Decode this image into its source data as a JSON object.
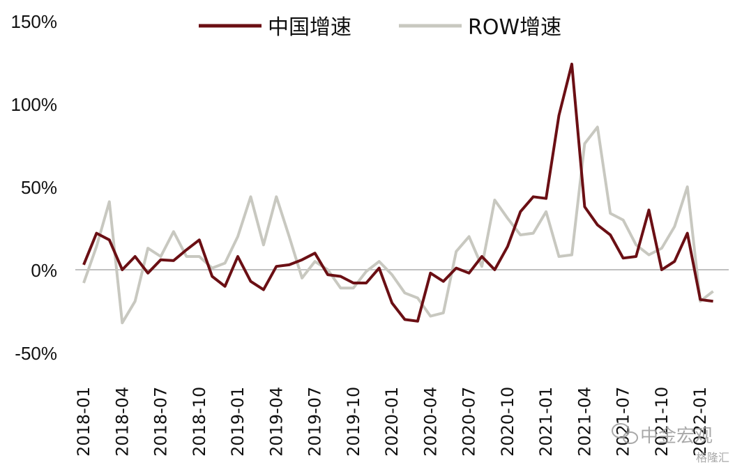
{
  "chart_data": {
    "type": "line",
    "title": "",
    "xlabel": "",
    "ylabel": "",
    "ylim": [
      -0.5,
      1.5
    ],
    "yticks": [
      -0.5,
      0,
      0.5,
      1.0,
      1.5
    ],
    "ytick_labels": [
      "-50%",
      "0%",
      "50%",
      "100%",
      "150%"
    ],
    "zero_line": true,
    "grid": false,
    "legend_position": "top",
    "x": [
      "2018-01",
      "2018-02",
      "2018-03",
      "2018-04",
      "2018-05",
      "2018-06",
      "2018-07",
      "2018-08",
      "2018-09",
      "2018-10",
      "2018-11",
      "2018-12",
      "2019-01",
      "2019-02",
      "2019-03",
      "2019-04",
      "2019-05",
      "2019-06",
      "2019-07",
      "2019-08",
      "2019-09",
      "2019-10",
      "2019-11",
      "2019-12",
      "2020-01",
      "2020-02",
      "2020-03",
      "2020-04",
      "2020-05",
      "2020-06",
      "2020-07",
      "2020-08",
      "2020-09",
      "2020-10",
      "2020-11",
      "2020-12",
      "2021-01",
      "2021-02",
      "2021-03",
      "2021-04",
      "2021-05",
      "2021-06",
      "2021-07",
      "2021-08",
      "2021-09",
      "2021-10",
      "2021-11",
      "2021-12",
      "2022-01",
      "2022-02"
    ],
    "xtick_labels": [
      "2018-01",
      "2018-04",
      "2018-07",
      "2018-10",
      "2019-01",
      "2019-04",
      "2019-07",
      "2019-10",
      "2020-01",
      "2020-04",
      "2020-07",
      "2020-10",
      "2021-01",
      "2021-04",
      "2021-07",
      "2021-10",
      "2022-01"
    ],
    "series": [
      {
        "name": "中国增速",
        "color": "#6b0f14",
        "values": [
          0.03,
          0.22,
          0.18,
          0.0,
          0.08,
          -0.02,
          0.06,
          0.055,
          0.12,
          0.18,
          -0.04,
          -0.1,
          0.08,
          -0.07,
          -0.12,
          0.02,
          0.03,
          0.06,
          0.1,
          -0.03,
          -0.04,
          -0.08,
          -0.08,
          0.01,
          -0.2,
          -0.3,
          -0.31,
          -0.02,
          -0.07,
          0.01,
          -0.02,
          0.08,
          0.0,
          0.14,
          0.35,
          0.44,
          0.43,
          0.93,
          1.24,
          0.38,
          0.27,
          0.21,
          0.07,
          0.08,
          0.36,
          0.0,
          0.05,
          0.22,
          -0.18,
          -0.19
        ]
      },
      {
        "name": "ROW增速",
        "color": "#c8c8c0",
        "values": [
          -0.08,
          0.14,
          0.41,
          -0.32,
          -0.19,
          0.13,
          0.08,
          0.23,
          0.08,
          0.08,
          0.01,
          0.04,
          0.2,
          0.44,
          0.15,
          0.44,
          0.2,
          -0.05,
          0.05,
          0.0,
          -0.11,
          -0.11,
          -0.01,
          0.05,
          -0.03,
          -0.14,
          -0.17,
          -0.28,
          -0.26,
          0.11,
          0.2,
          0.02,
          0.42,
          0.31,
          0.21,
          0.22,
          0.35,
          0.08,
          0.09,
          0.76,
          0.86,
          0.34,
          0.3,
          0.15,
          0.09,
          0.13,
          0.26,
          0.5,
          -0.19,
          -0.13
        ]
      }
    ]
  },
  "watermark": {
    "text": "中金宏观",
    "sub": "格隆汇"
  }
}
